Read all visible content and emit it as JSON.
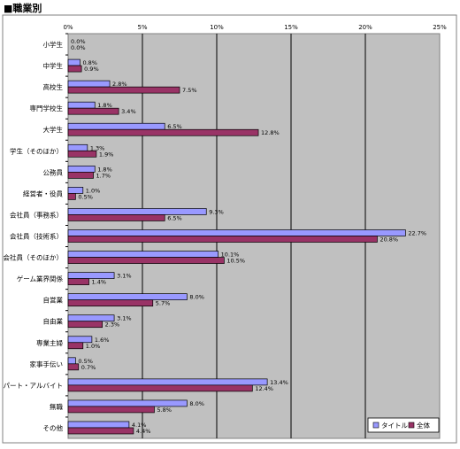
{
  "page_title": "■職業別",
  "chart_data": {
    "type": "bar",
    "orientation": "horizontal",
    "title": "",
    "xlabel": "",
    "ylabel": "",
    "xlim": [
      0,
      25
    ],
    "x_ticks": [
      "0%",
      "5%",
      "10%",
      "15%",
      "20%",
      "25%"
    ],
    "grid": "vertical",
    "legend_position": "bottom-right",
    "categories": [
      "小学生",
      "中学生",
      "高校生",
      "専門学校生",
      "大学生",
      "学生（そのほか）",
      "公務員",
      "経営者・役員",
      "会社員（事務系）",
      "会社員（技術系）",
      "会社員（そのほか）",
      "ゲーム業界関係",
      "自営業",
      "自由業",
      "専業主婦",
      "家事手伝い",
      "パート・アルバイト",
      "無職",
      "その他"
    ],
    "series": [
      {
        "name": "タイトル",
        "color": "#9999ff",
        "values": [
          0.0,
          0.8,
          2.8,
          1.8,
          6.5,
          1.3,
          1.8,
          1.0,
          9.3,
          22.7,
          10.1,
          3.1,
          8.0,
          3.1,
          1.6,
          0.5,
          13.4,
          8.0,
          4.1
        ],
        "labels": [
          "0.0%",
          "0.8%",
          "2.8%",
          "1.8%",
          "6.5%",
          "1.3%",
          "1.8%",
          "1.0%",
          "9.3%",
          "22.7%",
          "10.1%",
          "3.1%",
          "8.0%",
          "3.1%",
          "1.6%",
          "0.5%",
          "13.4%",
          "8.0%",
          "4.1%"
        ]
      },
      {
        "name": "全体",
        "color": "#993366",
        "values": [
          0.0,
          0.9,
          7.5,
          3.4,
          12.8,
          1.9,
          1.7,
          0.5,
          6.5,
          20.8,
          10.5,
          1.4,
          5.7,
          2.3,
          1.0,
          0.7,
          12.4,
          5.8,
          4.4
        ],
        "labels": [
          "0.0%",
          "0.9%",
          "7.5%",
          "3.4%",
          "12.8%",
          "1.9%",
          "1.7%",
          "0.5%",
          "6.5%",
          "20.8%",
          "10.5%",
          "1.4%",
          "5.7%",
          "2.3%",
          "1.0%",
          "0.7%",
          "12.4%",
          "5.8%",
          "4.4%"
        ]
      }
    ],
    "plot_background": "#c0c0c0"
  }
}
